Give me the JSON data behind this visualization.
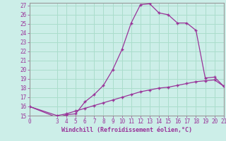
{
  "xlabel": "Windchill (Refroidissement éolien,°C)",
  "background_color": "#cceee8",
  "grid_color": "#aaddcc",
  "line_color": "#993399",
  "spine_color": "#999999",
  "xlim": [
    0,
    21
  ],
  "ylim": [
    15,
    27.3
  ],
  "yticks": [
    15,
    16,
    17,
    18,
    19,
    20,
    21,
    22,
    23,
    24,
    25,
    26,
    27
  ],
  "xticks": [
    0,
    3,
    4,
    5,
    6,
    7,
    8,
    9,
    10,
    11,
    12,
    13,
    14,
    15,
    16,
    17,
    18,
    19,
    20,
    21
  ],
  "curve1_x": [
    0,
    3,
    4,
    5,
    6,
    7,
    8,
    9,
    10,
    11,
    12,
    13,
    14,
    15,
    16,
    17,
    18,
    19,
    20,
    21
  ],
  "curve1_y": [
    16.0,
    14.8,
    15.1,
    15.2,
    16.5,
    17.3,
    18.3,
    20.0,
    22.2,
    25.1,
    27.1,
    27.2,
    26.2,
    26.0,
    25.1,
    25.1,
    24.3,
    19.1,
    19.2,
    18.2
  ],
  "curve2_x": [
    0,
    3,
    4,
    5,
    6,
    7,
    8,
    9,
    10,
    11,
    12,
    13,
    14,
    15,
    16,
    17,
    18,
    19,
    20,
    21
  ],
  "curve2_y": [
    16.0,
    15.0,
    15.2,
    15.5,
    15.8,
    16.1,
    16.4,
    16.7,
    17.0,
    17.3,
    17.6,
    17.8,
    18.0,
    18.1,
    18.3,
    18.5,
    18.7,
    18.8,
    18.9,
    18.2
  ],
  "tick_fontsize": 5.5,
  "xlabel_fontsize": 6.0
}
